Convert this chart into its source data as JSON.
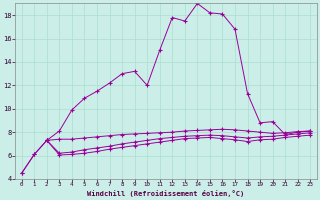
{
  "xlabel": "Windchill (Refroidissement éolien,°C)",
  "background_color": "#cceee8",
  "grid_color": "#aaddcc",
  "line_color": "#990099",
  "xlim": [
    -0.5,
    23.5
  ],
  "ylim": [
    4,
    19
  ],
  "yticks": [
    4,
    6,
    8,
    10,
    12,
    14,
    16,
    18
  ],
  "xticks": [
    0,
    1,
    2,
    3,
    4,
    5,
    6,
    7,
    8,
    9,
    10,
    11,
    12,
    13,
    14,
    15,
    16,
    17,
    18,
    19,
    20,
    21,
    22,
    23
  ],
  "curve_main_x": [
    0,
    1,
    2,
    3,
    4,
    5,
    6,
    7,
    8,
    9,
    10,
    11,
    12,
    13,
    14,
    15,
    16,
    17,
    18,
    19,
    20,
    21,
    22,
    23
  ],
  "curve_main_y": [
    4.5,
    6.1,
    7.3,
    8.1,
    9.9,
    10.9,
    11.5,
    12.2,
    13.0,
    13.2,
    12.0,
    15.0,
    17.8,
    17.5,
    19.0,
    18.2,
    18.1,
    16.8,
    11.3,
    8.8,
    8.9,
    7.8,
    8.0,
    8.1
  ],
  "curve_a_x": [
    0,
    1,
    2,
    3,
    4,
    5,
    6,
    7,
    8,
    9,
    10,
    11,
    12,
    13,
    14,
    15,
    16,
    17,
    18,
    19,
    20,
    21,
    22,
    23
  ],
  "curve_a_y": [
    4.5,
    6.1,
    7.3,
    7.4,
    7.4,
    7.5,
    7.6,
    7.7,
    7.8,
    7.85,
    7.9,
    7.95,
    8.0,
    8.1,
    8.15,
    8.2,
    8.25,
    8.2,
    8.1,
    8.0,
    7.9,
    7.95,
    8.05,
    8.1
  ],
  "curve_b_x": [
    2,
    3,
    4,
    5,
    6,
    7,
    8,
    9,
    10,
    11,
    12,
    13,
    14,
    15,
    16,
    17,
    18,
    19,
    20,
    21,
    22,
    23
  ],
  "curve_b_y": [
    7.3,
    6.2,
    6.3,
    6.5,
    6.65,
    6.8,
    7.0,
    7.15,
    7.3,
    7.45,
    7.55,
    7.65,
    7.7,
    7.75,
    7.7,
    7.6,
    7.5,
    7.6,
    7.65,
    7.75,
    7.85,
    7.95
  ],
  "curve_c_x": [
    2,
    3,
    4,
    5,
    6,
    7,
    8,
    9,
    10,
    11,
    12,
    13,
    14,
    15,
    16,
    17,
    18,
    19,
    20,
    21,
    22,
    23
  ],
  "curve_c_y": [
    7.3,
    6.05,
    6.1,
    6.2,
    6.35,
    6.55,
    6.7,
    6.85,
    7.0,
    7.15,
    7.3,
    7.45,
    7.5,
    7.55,
    7.45,
    7.35,
    7.2,
    7.35,
    7.4,
    7.55,
    7.65,
    7.75
  ]
}
